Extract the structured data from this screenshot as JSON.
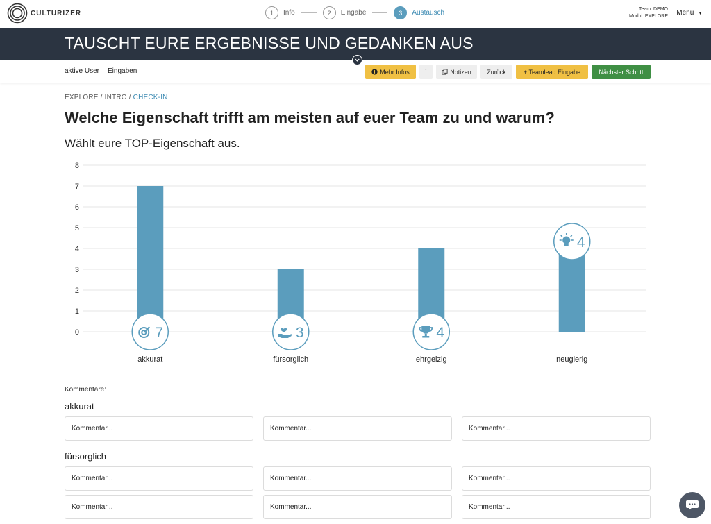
{
  "app": {
    "brand": "CULTURIZER"
  },
  "steps": [
    {
      "number": "1",
      "label": "Info",
      "active": false
    },
    {
      "number": "2",
      "label": "Eingabe",
      "active": false
    },
    {
      "number": "3",
      "label": "Austausch",
      "active": true
    }
  ],
  "team_info": {
    "team": "Team: DEMO",
    "module": "Modul: EXPLORE"
  },
  "menu_label": "Menü",
  "banner_title": "TAUSCHT EURE ERGEBNISSE UND GEDANKEN AUS",
  "subnav": {
    "active_users": "aktive User",
    "inputs": "Eingaben"
  },
  "toolbar": {
    "more_info": "Mehr Infos",
    "info": "i",
    "notes": "Notizen",
    "back": "Zurück",
    "teamlead": "+ Teamlead Eingabe",
    "next": "Nächster Schritt"
  },
  "breadcrumb": {
    "part1": "EXPLORE",
    "part2": "INTRO",
    "current": "CHECK-IN",
    "sep": "/"
  },
  "question": "Welche Eigenschaft trifft am meisten auf euer Team zu und warum?",
  "subquestion": "Wählt eure TOP-Eigenschaft aus.",
  "chart_data": {
    "type": "bar",
    "categories": [
      "akkurat",
      "fürsorglich",
      "ehrgeizig",
      "neugierig"
    ],
    "values": [
      7,
      3,
      4,
      4
    ],
    "icons": [
      "target-icon",
      "caring-hand-icon",
      "trophy-icon",
      "lightbulb-icon"
    ],
    "ylim": [
      0,
      8
    ],
    "yticks": [
      0,
      1,
      2,
      3,
      4,
      5,
      6,
      7,
      8
    ],
    "grid": true,
    "bar_color": "#5b9dbd"
  },
  "comments": {
    "label": "Kommentare:",
    "placeholder": "Kommentar...",
    "groups": [
      {
        "title": "akkurat"
      },
      {
        "title": "fürsorglich"
      }
    ]
  },
  "colors": {
    "accent": "#5b9dbd",
    "banner": "#2b3441",
    "yellow": "#f0c043",
    "green": "#3f8f44"
  }
}
